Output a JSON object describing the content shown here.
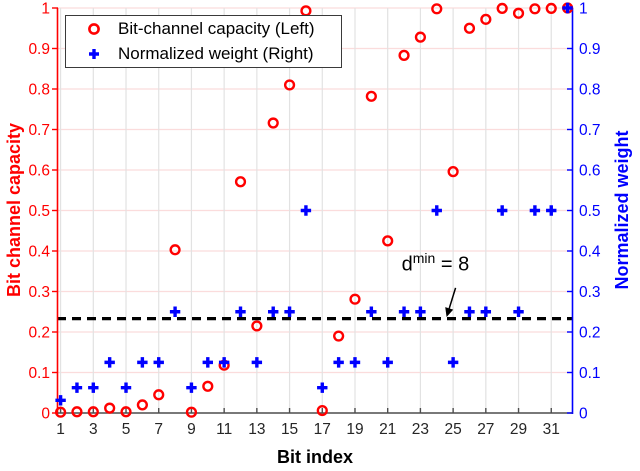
{
  "chart_data": {
    "type": "scatter",
    "title": "",
    "xlabel": "Bit index",
    "ylabel_left": "Bit channel capacity",
    "ylabel_right": "Normalized weight",
    "axis_colors": {
      "left": "#ff0000",
      "right": "#0000ff",
      "bottom": "#4d4d4d"
    },
    "grid": true,
    "grid_color_x": "#e2e2e2",
    "grid_color_y": "#fbdcdc",
    "legend_position": "top-left",
    "xlim": [
      0.78,
      32.33
    ],
    "ylim": [
      0,
      1
    ],
    "xticks": [
      1,
      3,
      5,
      7,
      9,
      11,
      13,
      15,
      17,
      19,
      21,
      23,
      25,
      27,
      29,
      31
    ],
    "yticks": [
      "0",
      "0.1",
      "0.2",
      "0.3",
      "0.4",
      "0.5",
      "0.6",
      "0.7",
      "0.8",
      "0.9",
      "1"
    ],
    "x": [
      1,
      2,
      3,
      4,
      5,
      6,
      7,
      8,
      9,
      10,
      11,
      12,
      13,
      14,
      15,
      16,
      17,
      18,
      19,
      20,
      21,
      22,
      23,
      24,
      25,
      26,
      27,
      28,
      29,
      30,
      31,
      32
    ],
    "series": [
      {
        "name": "Bit-channel capacity (Left)",
        "axis": "left",
        "marker": "circle",
        "color": "#ff0000",
        "values": [
          0.002,
          0.003,
          0.003,
          0.012,
          0.003,
          0.02,
          0.045,
          0.403,
          0.002,
          0.066,
          0.118,
          0.571,
          0.215,
          0.716,
          0.81,
          0.993,
          0.006,
          0.19,
          0.281,
          0.782,
          0.425,
          0.883,
          0.928,
          0.998,
          0.596,
          0.95,
          0.972,
          0.999,
          0.987,
          0.998,
          0.999,
          1.0
        ]
      },
      {
        "name": "Normalized weight (Right)",
        "axis": "right",
        "marker": "plus",
        "color": "#0000ff",
        "values": [
          0.03125,
          0.0625,
          0.0625,
          0.125,
          0.0625,
          0.125,
          0.125,
          0.25,
          0.0625,
          0.125,
          0.125,
          0.25,
          0.125,
          0.25,
          0.25,
          0.5,
          0.0625,
          0.125,
          0.125,
          0.25,
          0.125,
          0.25,
          0.25,
          0.5,
          0.125,
          0.25,
          0.25,
          0.5,
          0.25,
          0.5,
          0.5,
          1.0
        ]
      }
    ],
    "threshold_line": {
      "value": 0.233,
      "color": "#000000",
      "style": "dashed"
    },
    "annotation": {
      "base": "d",
      "sup": "min",
      "rest": " = 8",
      "text_x": 21.85,
      "text_y": 0.402,
      "arrow_from_x": 25.15,
      "arrow_from_y": 0.309,
      "arrow_to_x": 24.6,
      "arrow_to_y": 0.237
    }
  }
}
